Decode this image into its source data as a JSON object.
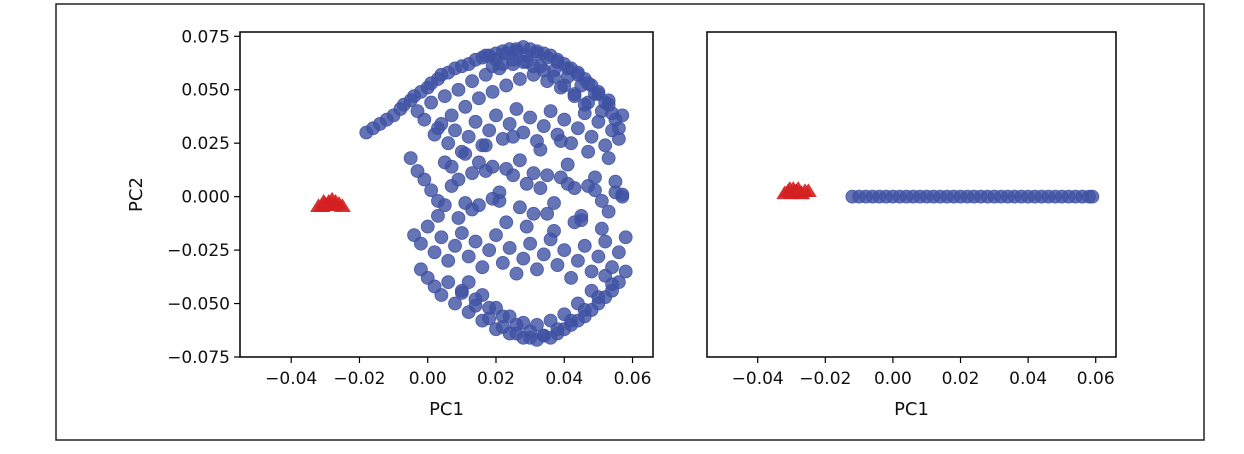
{
  "figure": {
    "colors": {
      "frame": "#222222",
      "background": "#ffffff"
    }
  },
  "chart_data": [
    {
      "type": "scatter",
      "title": "",
      "xlabel": "PC1",
      "ylabel": "PC2",
      "xlim": [
        -0.055,
        0.066
      ],
      "ylim": [
        -0.075,
        0.077
      ],
      "x_ticks": [
        -0.04,
        -0.02,
        0.0,
        0.02,
        0.04,
        0.06
      ],
      "x_tick_labels": [
        "−0.04",
        "−0.02",
        "0.00",
        "0.02",
        "0.04",
        "0.06"
      ],
      "y_ticks": [
        0.075,
        0.05,
        0.025,
        0.0,
        -0.025,
        -0.05,
        -0.075
      ],
      "y_tick_labels": [
        "0.075",
        "0.050",
        "0.025",
        "0.000",
        "−0.025",
        "−0.050",
        "−0.075"
      ],
      "grid": false,
      "series": [
        {
          "color": "#d42020",
          "marker": "triangle",
          "x": [
            -0.031,
            -0.03,
            -0.029,
            -0.028,
            -0.027,
            -0.026,
            -0.032,
            -0.0295,
            -0.0285,
            -0.0275,
            -0.025,
            -0.0305
          ],
          "y": [
            -0.004,
            -0.003,
            -0.002,
            -0.001,
            -0.002,
            -0.003,
            -0.004,
            -0.0035,
            -0.0025,
            -0.0035,
            -0.004,
            -0.002
          ]
        },
        {
          "color": "#3f51a3",
          "marker": "circle",
          "x": [
            -0.018,
            -0.016,
            -0.014,
            -0.012,
            -0.01,
            -0.008,
            -0.007,
            -0.005,
            -0.004,
            -0.002,
            0.0,
            0.001,
            0.003,
            0.004,
            0.006,
            0.008,
            0.01,
            0.012,
            0.014,
            0.016,
            0.018,
            0.02,
            0.022,
            0.024,
            0.026,
            0.028,
            0.03,
            0.032,
            0.034,
            0.036,
            0.038,
            0.04,
            0.042,
            0.044,
            0.046,
            0.048,
            0.05,
            0.052,
            0.054,
            0.056,
            -0.005,
            -0.003,
            -0.001,
            0.001,
            0.003,
            0.005,
            0.007,
            0.009,
            0.011,
            0.013,
            0.015,
            0.017,
            0.019,
            0.021,
            0.023,
            0.025,
            0.027,
            0.029,
            0.031,
            0.033,
            0.035,
            0.037,
            0.039,
            0.041,
            0.043,
            0.045,
            0.047,
            0.049,
            0.051,
            0.053,
            0.055,
            0.057,
            -0.004,
            -0.002,
            0.0,
            0.002,
            0.004,
            0.006,
            0.008,
            0.01,
            0.012,
            0.014,
            0.016,
            0.018,
            0.02,
            0.022,
            0.024,
            0.026,
            0.028,
            0.03,
            0.032,
            0.034,
            0.036,
            0.038,
            0.04,
            0.042,
            0.044,
            0.046,
            0.048,
            0.05,
            0.052,
            0.054,
            0.056,
            0.058,
            -0.002,
            0.0,
            0.002,
            0.004,
            0.006,
            0.008,
            0.01,
            0.012,
            0.014,
            0.016,
            0.018,
            0.02,
            0.022,
            0.024,
            0.026,
            0.028,
            0.03,
            0.032,
            0.034,
            0.036,
            0.038,
            0.04,
            0.042,
            0.044,
            0.046,
            0.048,
            0.05,
            0.052,
            0.054,
            0.056,
            0.058,
            -0.003,
            -0.001,
            0.001,
            0.003,
            0.005,
            0.007,
            0.009,
            0.011,
            0.013,
            0.015,
            0.017,
            0.019,
            0.021,
            0.023,
            0.025,
            0.027,
            0.029,
            0.031,
            0.033,
            0.035,
            0.037,
            0.039,
            0.041,
            0.043,
            0.045,
            0.047,
            0.049,
            0.051,
            0.053,
            0.055,
            0.057,
            0.002,
            0.004,
            0.006,
            0.008,
            0.01,
            0.012,
            0.014,
            0.016,
            0.018,
            0.02,
            0.022,
            0.024,
            0.026,
            0.028,
            0.03,
            0.032,
            0.034,
            0.036,
            0.038,
            0.04,
            0.042,
            0.044,
            0.046,
            0.048,
            0.05,
            0.052,
            0.054,
            0.056,
            0.01,
            0.014,
            0.018,
            0.022,
            0.026,
            0.03,
            0.034,
            0.038,
            0.042,
            0.046,
            0.05,
            0.054,
            0.012,
            0.016,
            0.02,
            0.024,
            0.028,
            0.032,
            0.036,
            0.04,
            0.044,
            0.048,
            0.052,
            0.017,
            0.02,
            0.023,
            0.026,
            0.029,
            0.032,
            0.035,
            0.038,
            0.041,
            0.044,
            0.047,
            0.05,
            0.053,
            0.019,
            0.022,
            0.025,
            0.028,
            0.031,
            0.034,
            0.037,
            0.04,
            0.043,
            0.046,
            0.005,
            0.009,
            0.013,
            0.017,
            0.021,
            0.025,
            0.029,
            0.033,
            0.037,
            0.041,
            0.045,
            0.049,
            0.053,
            0.057,
            0.003,
            0.007,
            0.011,
            0.015,
            0.019,
            0.023,
            0.027,
            0.031,
            0.035,
            0.039,
            0.043,
            0.047,
            0.051,
            0.055
          ],
          "y": [
            0.03,
            0.032,
            0.034,
            0.036,
            0.038,
            0.041,
            0.043,
            0.045,
            0.047,
            0.049,
            0.051,
            0.053,
            0.055,
            0.057,
            0.058,
            0.06,
            0.061,
            0.062,
            0.064,
            0.065,
            0.066,
            0.067,
            0.068,
            0.069,
            0.069,
            0.07,
            0.069,
            0.068,
            0.067,
            0.066,
            0.064,
            0.062,
            0.06,
            0.058,
            0.055,
            0.052,
            0.048,
            0.044,
            0.039,
            0.032,
            0.018,
            0.012,
            0.008,
            0.003,
            -0.002,
            0.016,
            0.005,
            -0.01,
            0.02,
            0.011,
            -0.004,
            0.024,
            0.014,
            0.002,
            -0.012,
            0.028,
            0.017,
            0.006,
            -0.008,
            0.022,
            0.01,
            -0.003,
            0.026,
            0.015,
            0.004,
            -0.009,
            0.021,
            0.009,
            -0.002,
            0.018,
            0.007,
            0.0,
            -0.018,
            -0.022,
            -0.014,
            -0.026,
            -0.019,
            -0.03,
            -0.023,
            -0.017,
            -0.028,
            -0.021,
            -0.033,
            -0.025,
            -0.018,
            -0.031,
            -0.024,
            -0.036,
            -0.029,
            -0.022,
            -0.034,
            -0.027,
            -0.02,
            -0.032,
            -0.025,
            -0.038,
            -0.03,
            -0.023,
            -0.035,
            -0.028,
            -0.021,
            -0.033,
            -0.026,
            -0.019,
            -0.034,
            -0.038,
            -0.042,
            -0.046,
            -0.04,
            -0.05,
            -0.044,
            -0.054,
            -0.048,
            -0.058,
            -0.052,
            -0.062,
            -0.056,
            -0.064,
            -0.06,
            -0.066,
            -0.063,
            -0.067,
            -0.065,
            -0.066,
            -0.064,
            -0.062,
            -0.06,
            -0.058,
            -0.056,
            -0.053,
            -0.05,
            -0.047,
            -0.044,
            -0.04,
            -0.035,
            0.04,
            0.036,
            0.044,
            0.032,
            0.047,
            0.038,
            0.05,
            0.042,
            0.054,
            0.046,
            0.057,
            0.049,
            0.06,
            0.052,
            0.062,
            0.055,
            0.063,
            0.057,
            0.061,
            0.054,
            0.059,
            0.051,
            0.056,
            0.048,
            0.052,
            0.044,
            0.048,
            0.04,
            0.043,
            0.036,
            0.038,
            0.029,
            0.034,
            0.025,
            0.031,
            0.021,
            0.028,
            0.035,
            0.024,
            0.031,
            0.038,
            0.027,
            0.034,
            0.041,
            0.03,
            0.037,
            0.026,
            0.033,
            0.04,
            0.029,
            0.036,
            0.025,
            0.032,
            0.039,
            0.028,
            0.035,
            0.024,
            0.031,
            0.027,
            -0.045,
            -0.051,
            -0.057,
            -0.061,
            -0.064,
            -0.066,
            -0.065,
            -0.062,
            -0.058,
            -0.053,
            -0.047,
            -0.041,
            -0.04,
            -0.046,
            -0.052,
            -0.056,
            -0.059,
            -0.06,
            -0.058,
            -0.055,
            -0.05,
            -0.044,
            -0.037,
            0.066,
            0.064,
            0.067,
            0.068,
            0.066,
            0.067,
            0.065,
            0.063,
            0.06,
            0.057,
            0.053,
            0.049,
            0.045,
            0.061,
            0.062,
            0.064,
            0.063,
            0.061,
            0.059,
            0.056,
            0.052,
            0.047,
            0.043,
            -0.004,
            0.008,
            -0.006,
            0.012,
            -0.002,
            0.01,
            -0.014,
            0.004,
            -0.016,
            0.006,
            -0.011,
            0.003,
            -0.007,
            0.001,
            -0.009,
            0.014,
            -0.003,
            0.016,
            -0.001,
            0.013,
            -0.005,
            0.011,
            -0.008,
            0.009,
            -0.012,
            0.005,
            -0.015,
            0.002
          ]
        }
      ]
    },
    {
      "type": "scatter",
      "title": "",
      "xlabel": "PC1",
      "ylabel": "",
      "xlim": [
        -0.055,
        0.066
      ],
      "ylim": [
        -0.075,
        0.077
      ],
      "x_ticks": [
        -0.04,
        -0.02,
        0.0,
        0.02,
        0.04,
        0.06
      ],
      "x_tick_labels": [
        "−0.04",
        "−0.02",
        "0.00",
        "0.02",
        "0.04",
        "0.06"
      ],
      "y_ticks": [],
      "y_tick_labels": [],
      "grid": false,
      "series": [
        {
          "color": "#d42020",
          "marker": "triangle",
          "x": [
            -0.031,
            -0.03,
            -0.029,
            -0.028,
            -0.027,
            -0.026,
            -0.032,
            -0.0295,
            -0.0285,
            -0.0275,
            -0.025,
            -0.0305
          ],
          "y": [
            0.003,
            0.002,
            0.003,
            0.004,
            0.002,
            0.003,
            0.002,
            0.004,
            0.003,
            0.002,
            0.003,
            0.004
          ]
        },
        {
          "color": "#3f51a3",
          "marker": "circle",
          "x": [
            -0.012,
            -0.01,
            -0.008,
            -0.006,
            -0.004,
            -0.002,
            0.0,
            0.002,
            0.004,
            0.006,
            0.008,
            0.01,
            0.012,
            0.014,
            0.016,
            0.018,
            0.02,
            0.022,
            0.024,
            0.026,
            0.028,
            0.03,
            0.032,
            0.034,
            0.036,
            0.038,
            0.04,
            0.042,
            0.044,
            0.046,
            0.048,
            0.05,
            0.052,
            0.054,
            0.056,
            0.058,
            0.059
          ],
          "y": [
            0,
            0,
            0,
            0,
            0,
            0,
            0,
            0,
            0,
            0,
            0,
            0,
            0,
            0,
            0,
            0,
            0,
            0,
            0,
            0,
            0,
            0,
            0,
            0,
            0,
            0,
            0,
            0,
            0,
            0,
            0,
            0,
            0,
            0,
            0,
            0,
            0
          ]
        }
      ]
    }
  ]
}
